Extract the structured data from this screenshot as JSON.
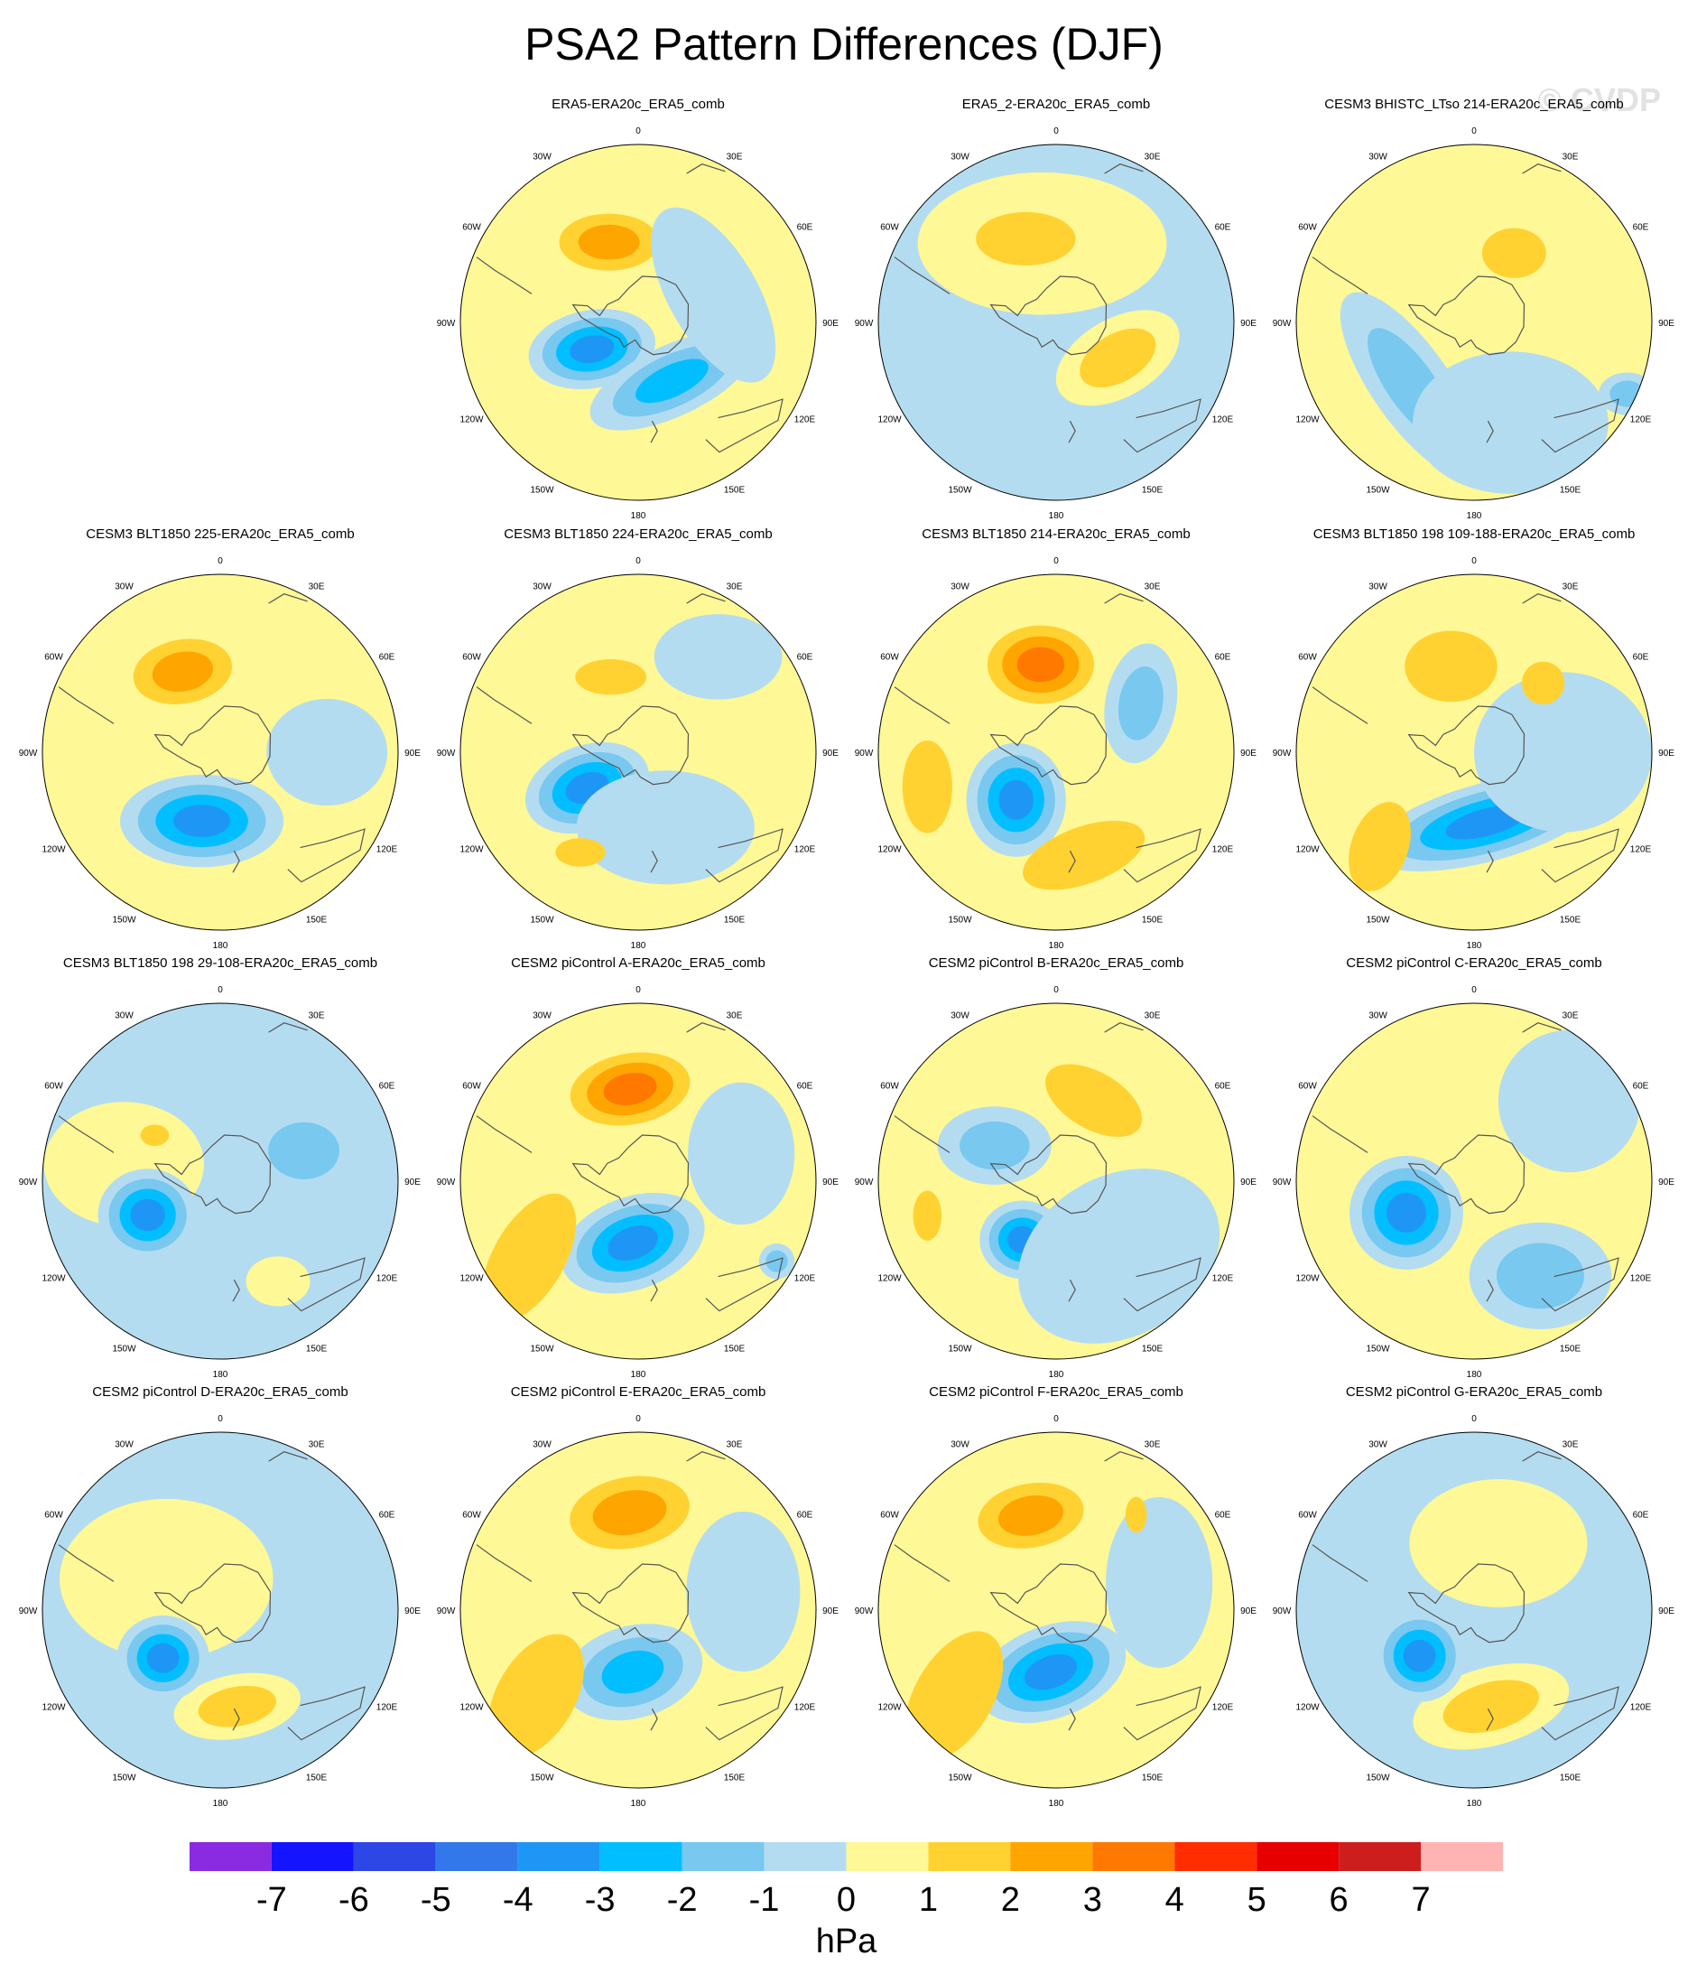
{
  "title": "PSA2 Pattern Differences (DJF)",
  "watermark": "© CVDP",
  "lon_labels": [
    "0",
    "30E",
    "60E",
    "90E",
    "120E",
    "150E",
    "180",
    "150W",
    "120W",
    "90W",
    "60W",
    "30W"
  ],
  "colors": {
    "land_outline": "#555555",
    "levels": [
      "#8A2BE2",
      "#1414FF",
      "#2D46E6",
      "#3278EB",
      "#1E96F5",
      "#00BEFF",
      "#78C8F0",
      "#B4DCF0",
      "#FFF896",
      "#FFD232",
      "#FFA500",
      "#FF7800",
      "#FF2D00",
      "#E60000",
      "#CD1E1E",
      "#FFB4B4"
    ]
  },
  "panels": [
    {
      "title": "ERA5-ERA20c_ERA5_comb",
      "row": 0,
      "col": 1,
      "bg": "yellow",
      "blobs": [
        {
          "type": "neg",
          "lon": -120,
          "r": 0.3,
          "rx": 0.36,
          "ry": 0.22,
          "rot": -10,
          "levels": [
            -1,
            -2,
            -3,
            -4
          ]
        },
        {
          "type": "neg",
          "lon": 150,
          "r": 0.38,
          "rx": 0.5,
          "ry": 0.2,
          "rot": -25,
          "levels": [
            -1,
            -2,
            -3
          ]
        },
        {
          "type": "pos",
          "lon": -20,
          "r": 0.48,
          "rx": 0.28,
          "ry": 0.16,
          "rot": 0,
          "levels": [
            1,
            2
          ]
        },
        {
          "type": "neg",
          "lon": 70,
          "r": 0.45,
          "rx": 0.55,
          "ry": 0.25,
          "rot": 60,
          "levels": [
            -1
          ]
        }
      ]
    },
    {
      "title": "ERA5_2-ERA20c_ERA5_comb",
      "row": 0,
      "col": 2,
      "bg": "blue",
      "blobs": [
        {
          "type": "pos",
          "lon": -10,
          "r": 0.45,
          "rx": 0.7,
          "ry": 0.4,
          "rot": 0,
          "levels": [
            0
          ]
        },
        {
          "type": "pos",
          "lon": -20,
          "r": 0.5,
          "rx": 0.28,
          "ry": 0.15,
          "rot": 0,
          "levels": [
            1
          ]
        },
        {
          "type": "pos",
          "lon": 120,
          "r": 0.4,
          "rx": 0.38,
          "ry": 0.22,
          "rot": -30,
          "levels": [
            0,
            1
          ]
        },
        {
          "type": "neg",
          "lon": -120,
          "r": 0.4,
          "rx": 0.14,
          "ry": 0.18,
          "rot": 0,
          "levels": [
            -1
          ]
        }
      ]
    },
    {
      "title": "CESM3 BHISTC_LTso 214-ERA20c_ERA5_comb",
      "row": 0,
      "col": 3,
      "bg": "yellow",
      "blobs": [
        {
          "type": "neg",
          "lon": -135,
          "r": 0.5,
          "rx": 0.62,
          "ry": 0.22,
          "rot": 55,
          "levels": [
            -1,
            -2
          ]
        },
        {
          "type": "neg",
          "lon": 160,
          "r": 0.6,
          "rx": 0.55,
          "ry": 0.4,
          "rot": 0,
          "levels": [
            -1
          ]
        },
        {
          "type": "pos",
          "lon": 30,
          "r": 0.45,
          "rx": 0.18,
          "ry": 0.14,
          "rot": 0,
          "levels": [
            1
          ]
        },
        {
          "type": "neg",
          "lon": 115,
          "r": 0.95,
          "rx": 0.16,
          "ry": 0.12,
          "rot": 0,
          "levels": [
            -1,
            -2
          ]
        }
      ]
    },
    {
      "title": "CESM3 BLT1850 225-ERA20c_ERA5_comb",
      "row": 1,
      "col": 0,
      "bg": "yellow",
      "blobs": [
        {
          "type": "neg",
          "lon": -165,
          "r": 0.4,
          "rx": 0.46,
          "ry": 0.26,
          "rot": 0,
          "levels": [
            -1,
            -2,
            -3,
            -4
          ]
        },
        {
          "type": "pos",
          "lon": -25,
          "r": 0.5,
          "rx": 0.28,
          "ry": 0.18,
          "rot": -10,
          "levels": [
            1,
            2
          ]
        },
        {
          "type": "neg",
          "lon": 90,
          "r": 0.6,
          "rx": 0.34,
          "ry": 0.3,
          "rot": 0,
          "levels": [
            -1
          ]
        }
      ]
    },
    {
      "title": "CESM3 BLT1850 224-ERA20c_ERA5_comb",
      "row": 1,
      "col": 1,
      "bg": "yellow",
      "blobs": [
        {
          "type": "neg",
          "lon": -125,
          "r": 0.35,
          "rx": 0.36,
          "ry": 0.24,
          "rot": -20,
          "levels": [
            -1,
            -2,
            -3,
            -4
          ]
        },
        {
          "type": "neg",
          "lon": 160,
          "r": 0.45,
          "rx": 0.5,
          "ry": 0.32,
          "rot": 0,
          "levels": [
            -1
          ]
        },
        {
          "type": "neg",
          "lon": 40,
          "r": 0.7,
          "rx": 0.36,
          "ry": 0.24,
          "rot": 0,
          "levels": [
            -1
          ]
        },
        {
          "type": "pos",
          "lon": -20,
          "r": 0.45,
          "rx": 0.2,
          "ry": 0.1,
          "rot": 0,
          "levels": [
            1
          ]
        },
        {
          "type": "pos",
          "lon": -150,
          "r": 0.65,
          "rx": 0.14,
          "ry": 0.08,
          "rot": 0,
          "levels": [
            1
          ]
        }
      ]
    },
    {
      "title": "CESM3 BLT1850 214-ERA20c_ERA5_comb",
      "row": 1,
      "col": 2,
      "bg": "yellow",
      "blobs": [
        {
          "type": "neg",
          "lon": -140,
          "r": 0.35,
          "rx": 0.28,
          "ry": 0.32,
          "rot": 0,
          "levels": [
            -1,
            -2,
            -3,
            -4
          ]
        },
        {
          "type": "pos",
          "lon": -10,
          "r": 0.5,
          "rx": 0.3,
          "ry": 0.22,
          "rot": 0,
          "levels": [
            1,
            2,
            3
          ]
        },
        {
          "type": "neg",
          "lon": 60,
          "r": 0.55,
          "rx": 0.2,
          "ry": 0.34,
          "rot": 10,
          "levels": [
            -1,
            -2
          ]
        },
        {
          "type": "pos",
          "lon": 165,
          "r": 0.6,
          "rx": 0.36,
          "ry": 0.16,
          "rot": -20,
          "levels": [
            1
          ]
        },
        {
          "type": "pos",
          "lon": -105,
          "r": 0.75,
          "rx": 0.14,
          "ry": 0.26,
          "rot": 0,
          "levels": [
            1
          ]
        }
      ]
    },
    {
      "title": "CESM3 BLT1850 198 109-188-ERA20c_ERA5_comb",
      "row": 1,
      "col": 3,
      "bg": "yellow",
      "blobs": [
        {
          "type": "neg",
          "lon": 170,
          "r": 0.4,
          "rx": 0.68,
          "ry": 0.22,
          "rot": -15,
          "levels": [
            -1,
            -2,
            -3,
            -4
          ]
        },
        {
          "type": "neg",
          "lon": 90,
          "r": 0.5,
          "rx": 0.5,
          "ry": 0.45,
          "rot": 0,
          "levels": [
            -1
          ]
        },
        {
          "type": "pos",
          "lon": -15,
          "r": 0.5,
          "rx": 0.26,
          "ry": 0.2,
          "rot": 0,
          "levels": [
            1
          ]
        },
        {
          "type": "pos",
          "lon": 45,
          "r": 0.55,
          "rx": 0.12,
          "ry": 0.12,
          "rot": 0,
          "levels": [
            1
          ]
        },
        {
          "type": "pos",
          "lon": -135,
          "r": 0.75,
          "rx": 0.16,
          "ry": 0.26,
          "rot": 20,
          "levels": [
            1
          ]
        }
      ]
    },
    {
      "title": "CESM3 BLT1850 198 29-108-ERA20c_ERA5_comb",
      "row": 2,
      "col": 0,
      "bg": "blue",
      "blobs": [
        {
          "type": "pos",
          "lon": -80,
          "r": 0.55,
          "rx": 0.45,
          "ry": 0.35,
          "rot": 0,
          "levels": [
            0
          ]
        },
        {
          "type": "pos",
          "lon": 150,
          "r": 0.65,
          "rx": 0.18,
          "ry": 0.14,
          "rot": 0,
          "levels": [
            0
          ]
        },
        {
          "type": "neg",
          "lon": -115,
          "r": 0.45,
          "rx": 0.28,
          "ry": 0.26,
          "rot": 0,
          "levels": [
            -1,
            -2,
            -3,
            -4
          ]
        },
        {
          "type": "neg",
          "lon": 70,
          "r": 0.5,
          "rx": 0.2,
          "ry": 0.16,
          "rot": 0,
          "levels": [
            -2
          ]
        },
        {
          "type": "pos",
          "lon": -55,
          "r": 0.45,
          "rx": 0.08,
          "ry": 0.06,
          "rot": 0,
          "levels": [
            1
          ]
        }
      ]
    },
    {
      "title": "CESM2 piControl A-ERA20c_ERA5_comb",
      "row": 2,
      "col": 1,
      "bg": "yellow",
      "blobs": [
        {
          "type": "neg",
          "lon": -175,
          "r": 0.35,
          "rx": 0.42,
          "ry": 0.26,
          "rot": -20,
          "levels": [
            -1,
            -2,
            -3,
            -4
          ]
        },
        {
          "type": "pos",
          "lon": -5,
          "r": 0.52,
          "rx": 0.34,
          "ry": 0.2,
          "rot": -10,
          "levels": [
            1,
            2,
            3
          ]
        },
        {
          "type": "pos",
          "lon": -125,
          "r": 0.75,
          "rx": 0.2,
          "ry": 0.4,
          "rot": 30,
          "levels": [
            1
          ]
        },
        {
          "type": "neg",
          "lon": 75,
          "r": 0.6,
          "rx": 0.3,
          "ry": 0.4,
          "rot": 0,
          "levels": [
            -1
          ]
        },
        {
          "type": "neg",
          "lon": 120,
          "r": 0.9,
          "rx": 0.1,
          "ry": 0.1,
          "rot": 0,
          "levels": [
            -1,
            -2
          ]
        }
      ]
    },
    {
      "title": "CESM2 piControl B-ERA20c_ERA5_comb",
      "row": 2,
      "col": 2,
      "bg": "yellow",
      "blobs": [
        {
          "type": "neg",
          "lon": -150,
          "r": 0.38,
          "rx": 0.24,
          "ry": 0.22,
          "rot": 0,
          "levels": [
            -1,
            -2,
            -3,
            -4
          ]
        },
        {
          "type": "neg",
          "lon": -60,
          "r": 0.4,
          "rx": 0.32,
          "ry": 0.22,
          "rot": 0,
          "levels": [
            -1,
            -2
          ]
        },
        {
          "type": "neg",
          "lon": 140,
          "r": 0.55,
          "rx": 0.6,
          "ry": 0.45,
          "rot": -30,
          "levels": [
            -1
          ]
        },
        {
          "type": "pos",
          "lon": 25,
          "r": 0.5,
          "rx": 0.3,
          "ry": 0.16,
          "rot": 30,
          "levels": [
            1
          ]
        },
        {
          "type": "pos",
          "lon": -105,
          "r": 0.75,
          "rx": 0.08,
          "ry": 0.14,
          "rot": 0,
          "levels": [
            1
          ]
        }
      ]
    },
    {
      "title": "CESM2 piControl C-ERA20c_ERA5_comb",
      "row": 2,
      "col": 3,
      "bg": "yellow",
      "blobs": [
        {
          "type": "neg",
          "lon": -115,
          "r": 0.42,
          "rx": 0.32,
          "ry": 0.32,
          "rot": 0,
          "levels": [
            -1,
            -2,
            -3,
            -4
          ]
        },
        {
          "type": "neg",
          "lon": 145,
          "r": 0.65,
          "rx": 0.4,
          "ry": 0.3,
          "rot": 0,
          "levels": [
            -1,
            -2
          ]
        },
        {
          "type": "neg",
          "lon": 50,
          "r": 0.7,
          "rx": 0.4,
          "ry": 0.4,
          "rot": 0,
          "levels": [
            -1
          ]
        }
      ]
    },
    {
      "title": "CESM2 piControl D-ERA20c_ERA5_comb",
      "row": 3,
      "col": 0,
      "bg": "blue",
      "blobs": [
        {
          "type": "pos",
          "lon": -60,
          "r": 0.35,
          "rx": 0.6,
          "ry": 0.45,
          "rot": 0,
          "levels": [
            0
          ]
        },
        {
          "type": "pos",
          "lon": 170,
          "r": 0.55,
          "rx": 0.36,
          "ry": 0.18,
          "rot": -10,
          "levels": [
            0,
            1
          ]
        },
        {
          "type": "neg",
          "lon": -130,
          "r": 0.42,
          "rx": 0.26,
          "ry": 0.24,
          "rot": 0,
          "levels": [
            -1,
            -2,
            -3,
            -4
          ]
        }
      ]
    },
    {
      "title": "CESM2 piControl E-ERA20c_ERA5_comb",
      "row": 3,
      "col": 1,
      "bg": "yellow",
      "blobs": [
        {
          "type": "neg",
          "lon": -175,
          "r": 0.35,
          "rx": 0.4,
          "ry": 0.26,
          "rot": -15,
          "levels": [
            -1,
            -2,
            -3
          ]
        },
        {
          "type": "pos",
          "lon": -5,
          "r": 0.55,
          "rx": 0.34,
          "ry": 0.2,
          "rot": -10,
          "levels": [
            1,
            2
          ]
        },
        {
          "type": "pos",
          "lon": -130,
          "r": 0.75,
          "rx": 0.22,
          "ry": 0.38,
          "rot": 30,
          "levels": [
            1
          ]
        },
        {
          "type": "neg",
          "lon": 80,
          "r": 0.6,
          "rx": 0.32,
          "ry": 0.45,
          "rot": 0,
          "levels": [
            -1
          ]
        }
      ]
    },
    {
      "title": "CESM2 piControl F-ERA20c_ERA5_comb",
      "row": 3,
      "col": 2,
      "bg": "yellow",
      "blobs": [
        {
          "type": "neg",
          "lon": -175,
          "r": 0.35,
          "rx": 0.44,
          "ry": 0.26,
          "rot": -20,
          "levels": [
            -1,
            -2,
            -3,
            -4
          ]
        },
        {
          "type": "pos",
          "lon": -15,
          "r": 0.55,
          "rx": 0.3,
          "ry": 0.18,
          "rot": -10,
          "levels": [
            1,
            2
          ]
        },
        {
          "type": "pos",
          "lon": -130,
          "r": 0.75,
          "rx": 0.22,
          "ry": 0.4,
          "rot": 30,
          "levels": [
            1
          ]
        },
        {
          "type": "neg",
          "lon": 75,
          "r": 0.6,
          "rx": 0.3,
          "ry": 0.48,
          "rot": 0,
          "levels": [
            -1
          ]
        },
        {
          "type": "pos",
          "lon": 40,
          "r": 0.7,
          "rx": 0.06,
          "ry": 0.1,
          "rot": 0,
          "levels": [
            1
          ]
        }
      ]
    },
    {
      "title": "CESM2 piControl G-ERA20c_ERA5_comb",
      "row": 3,
      "col": 3,
      "bg": "blue",
      "blobs": [
        {
          "type": "pos",
          "lon": 170,
          "r": 0.55,
          "rx": 0.45,
          "ry": 0.22,
          "rot": -15,
          "levels": [
            0,
            1
          ]
        },
        {
          "type": "pos",
          "lon": 20,
          "r": 0.4,
          "rx": 0.5,
          "ry": 0.36,
          "rot": 0,
          "levels": [
            0
          ]
        },
        {
          "type": "neg",
          "lon": -130,
          "r": 0.4,
          "rx": 0.26,
          "ry": 0.26,
          "rot": 0,
          "levels": [
            -1,
            -2,
            -3,
            -4
          ]
        }
      ]
    }
  ],
  "colorbar": {
    "labels": [
      "-7",
      "-6",
      "-5",
      "-4",
      "-3",
      "-2",
      "-1",
      "0",
      "1",
      "2",
      "3",
      "4",
      "5",
      "6",
      "7"
    ],
    "units": "hPa"
  }
}
